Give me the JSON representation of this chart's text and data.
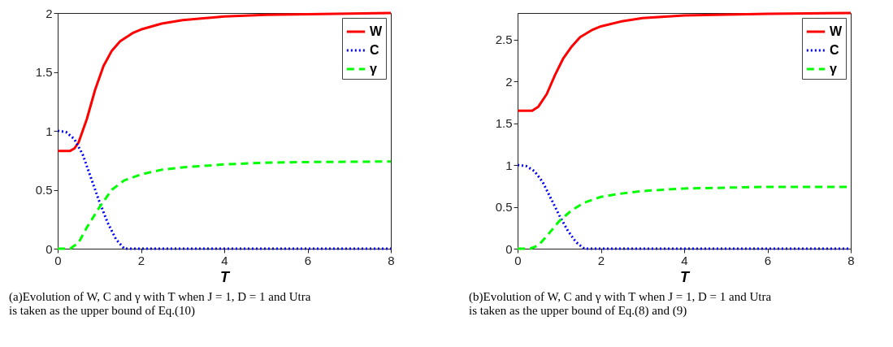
{
  "chart_data": [
    {
      "type": "line",
      "xlabel": "T",
      "xlim": [
        0,
        8
      ],
      "xticks": [
        0,
        2,
        4,
        6,
        8
      ],
      "ylim": [
        0,
        2
      ],
      "yticks": [
        0,
        0.5,
        1,
        1.5,
        2
      ],
      "grid": false,
      "legend": "top right",
      "annotations": [
        "(a)Evolution of W, C and γ with T when J = 1, D = 1 and Utra is taken as the upper bound of Eq.(10)"
      ],
      "series": [
        {
          "name": "W",
          "color": "#ff0000",
          "line_style": "solid",
          "x": [
            0,
            0.3,
            0.4,
            0.5,
            0.7,
            0.9,
            1.1,
            1.3,
            1.5,
            1.8,
            2,
            2.5,
            3,
            4,
            5,
            6,
            8
          ],
          "values": [
            0.83,
            0.83,
            0.85,
            0.9,
            1.1,
            1.35,
            1.55,
            1.68,
            1.76,
            1.83,
            1.86,
            1.91,
            1.94,
            1.97,
            1.985,
            1.99,
            2.0
          ]
        },
        {
          "name": "C",
          "color": "#0000ff",
          "line_style": "dotted",
          "x": [
            0,
            0.2,
            0.4,
            0.6,
            0.8,
            1.0,
            1.2,
            1.4,
            1.6,
            8
          ],
          "values": [
            1,
            0.99,
            0.93,
            0.8,
            0.6,
            0.4,
            0.22,
            0.08,
            0,
            0
          ]
        },
        {
          "name": "γ",
          "color": "#00ff00",
          "line_style": "dashed",
          "x": [
            0,
            0.3,
            0.5,
            0.7,
            1.0,
            1.3,
            1.6,
            2,
            2.5,
            3,
            4,
            5,
            6,
            8
          ],
          "values": [
            0,
            0,
            0.05,
            0.18,
            0.35,
            0.5,
            0.58,
            0.63,
            0.67,
            0.69,
            0.715,
            0.73,
            0.735,
            0.74
          ]
        }
      ]
    },
    {
      "type": "line",
      "xlabel": "T",
      "xlim": [
        0,
        8
      ],
      "xticks": [
        0,
        2,
        4,
        6,
        8
      ],
      "ylim": [
        0,
        2.82
      ],
      "yticks": [
        0,
        0.5,
        1,
        1.5,
        2,
        2.5
      ],
      "grid": false,
      "legend": "top right",
      "annotations": [
        "(b)Evolution of W, C and γ with T when J = 1, D = 1 and Utra is taken as the upper bound of Eq.(8) and (9)"
      ],
      "series": [
        {
          "name": "W",
          "color": "#ff0000",
          "line_style": "solid",
          "x": [
            0,
            0.35,
            0.5,
            0.7,
            0.9,
            1.1,
            1.3,
            1.5,
            1.8,
            2,
            2.5,
            3,
            4,
            5,
            6,
            8
          ],
          "values": [
            1.65,
            1.65,
            1.7,
            1.85,
            2.08,
            2.28,
            2.42,
            2.53,
            2.62,
            2.66,
            2.72,
            2.76,
            2.79,
            2.8,
            2.81,
            2.82
          ]
        },
        {
          "name": "C",
          "color": "#0000ff",
          "line_style": "dotted",
          "x": [
            0,
            0.2,
            0.4,
            0.6,
            0.8,
            1.0,
            1.2,
            1.4,
            1.6,
            8
          ],
          "values": [
            1,
            0.99,
            0.93,
            0.8,
            0.6,
            0.4,
            0.22,
            0.08,
            0,
            0
          ]
        },
        {
          "name": "γ",
          "color": "#00ff00",
          "line_style": "dashed",
          "x": [
            0,
            0.3,
            0.5,
            0.7,
            1.0,
            1.3,
            1.6,
            2,
            2.5,
            3,
            4,
            5,
            6,
            8
          ],
          "values": [
            0,
            0,
            0.04,
            0.15,
            0.33,
            0.46,
            0.55,
            0.62,
            0.66,
            0.69,
            0.72,
            0.73,
            0.74,
            0.74
          ]
        }
      ]
    }
  ]
}
